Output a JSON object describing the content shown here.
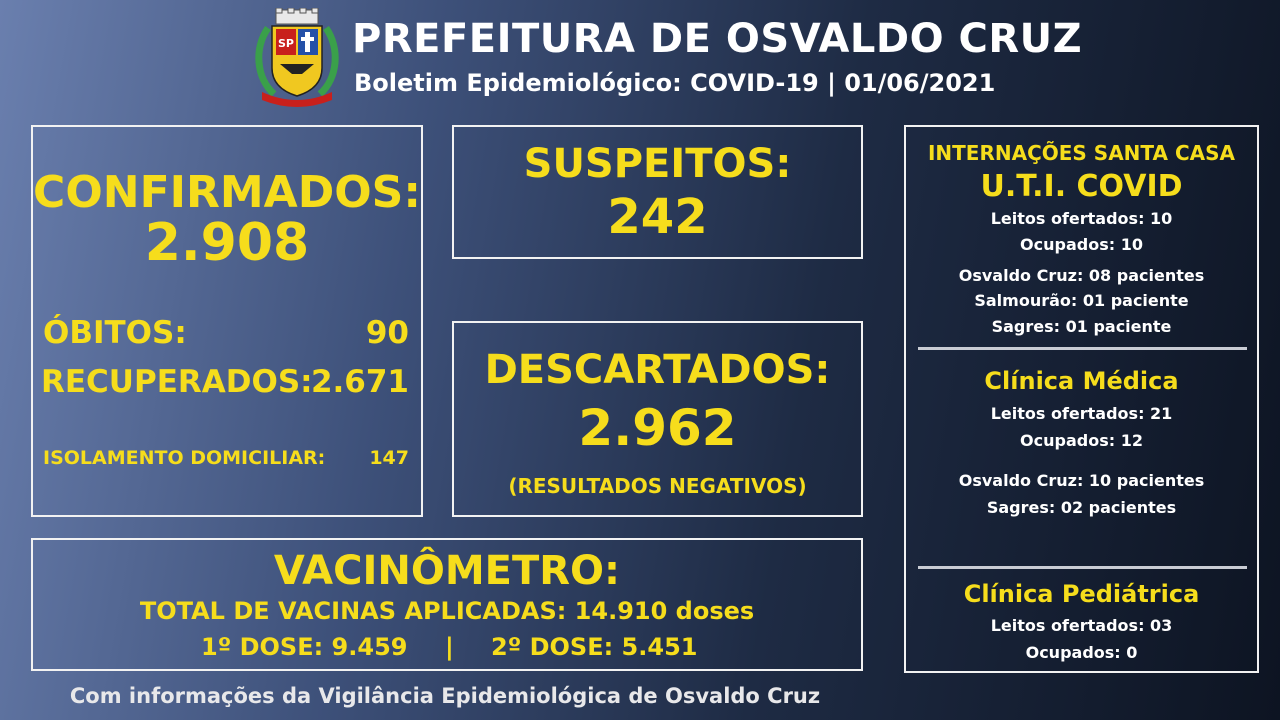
{
  "header": {
    "title": "PREFEITURA DE OSVALDO CRUZ",
    "subtitle": "Boletim Epidemiológico: COVID-19 | 01/06/2021",
    "crest_letters": "SP"
  },
  "confirmed": {
    "label": "CONFIRMADOS:",
    "value": "2.908",
    "deaths_label": "ÓBITOS:",
    "deaths_value": "90",
    "recovered_label": "RECUPERADOS:",
    "recovered_value": "2.671",
    "isolation_label": "ISOLAMENTO DOMICILIAR:",
    "isolation_value": "147"
  },
  "suspects": {
    "label": "SUSPEITOS:",
    "value": "242"
  },
  "discarded": {
    "label": "DESCARTADOS:",
    "value": "2.962",
    "note": "(RESULTADOS NEGATIVOS)"
  },
  "vaccine": {
    "title": "VACINÔMETRO:",
    "total_line": "TOTAL DE VACINAS APLICADAS: 14.910 doses",
    "dose1": "1º DOSE: 9.459",
    "separator": "|",
    "dose2": "2º DOSE: 5.451"
  },
  "hospital": {
    "header": "INTERNAÇÕES SANTA CASA",
    "uti": {
      "title": "U.T.I. COVID",
      "beds": "Leitos ofertados: 10",
      "occupied": "Ocupados: 10",
      "city1": "Osvaldo Cruz: 08 pacientes",
      "city2": "Salmourão: 01 paciente",
      "city3": "Sagres: 01 paciente"
    },
    "clinica_medica": {
      "title": "Clínica Médica",
      "beds": "Leitos ofertados: 21",
      "occupied": "Ocupados: 12",
      "city1": "Osvaldo Cruz: 10 pacientes",
      "city2": "Sagres: 02 pacientes"
    },
    "clinica_pediatrica": {
      "title": "Clínica Pediátrica",
      "beds": "Leitos ofertados: 03",
      "occupied": "Ocupados: 0"
    }
  },
  "footer": "Com informações da Vigilância Epidemiológica de Osvaldo Cruz",
  "colors": {
    "accent": "#f6dd1c",
    "text": "#ffffff",
    "border": "#f2f2f2"
  }
}
